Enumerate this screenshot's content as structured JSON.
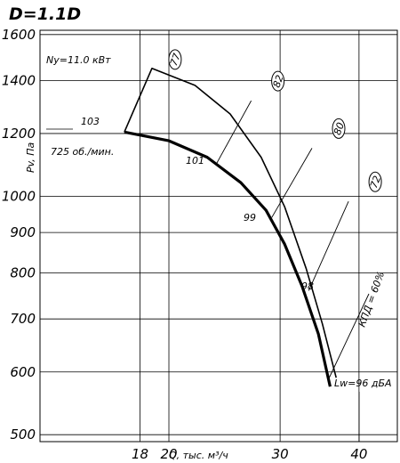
{
  "chart_data": {
    "type": "line",
    "title": "D=1.1D",
    "xlabel": "Q, тыс. м³/ч",
    "ylabel": "Pv, Па",
    "x_scale": "log",
    "y_scale": "log",
    "xlim": [
      12.5,
      46
    ],
    "ylim": [
      490,
      1620
    ],
    "x_ticks": [
      18,
      20,
      30,
      40
    ],
    "y_ticks": [
      500,
      600,
      700,
      800,
      900,
      1000,
      1200,
      1400,
      1600
    ],
    "grid": true,
    "series": [
      {
        "name": "725 об./мин.",
        "values_xy": [
          [
            17.0,
            1205
          ],
          [
            20.0,
            1175
          ],
          [
            23.0,
            1120
          ],
          [
            26.0,
            1040
          ],
          [
            28.5,
            960
          ],
          [
            30.5,
            870
          ],
          [
            32.5,
            770
          ],
          [
            34.5,
            670
          ],
          [
            36.0,
            575
          ]
        ]
      },
      {
        "name": "Ny=11.0 кВт",
        "values_xy": [
          [
            17.0,
            1205
          ],
          [
            18.8,
            1450
          ],
          [
            22.0,
            1380
          ],
          [
            25.0,
            1270
          ],
          [
            28.0,
            1120
          ],
          [
            30.5,
            970
          ],
          [
            33.0,
            810
          ],
          [
            35.0,
            690
          ],
          [
            36.8,
            590
          ]
        ]
      }
    ],
    "efficiency_lines": [
      {
        "label": "77",
        "x": 18.8,
        "y": 1450
      },
      {
        "label": "82",
        "x": 27.0,
        "y": 1320
      },
      {
        "label": "80",
        "x": 33.7,
        "y": 1150
      },
      {
        "label": "72",
        "x": 38.5,
        "y": 985
      }
    ],
    "annotations": [
      {
        "text": "Ny=11.0 кВт"
      },
      {
        "text": "725 об./мин."
      },
      {
        "text": "103"
      },
      {
        "text": "101"
      },
      {
        "text": "99"
      },
      {
        "text": "98"
      },
      {
        "text": "Lw=96 дБА"
      },
      {
        "text": "КПД = 60%"
      }
    ]
  }
}
